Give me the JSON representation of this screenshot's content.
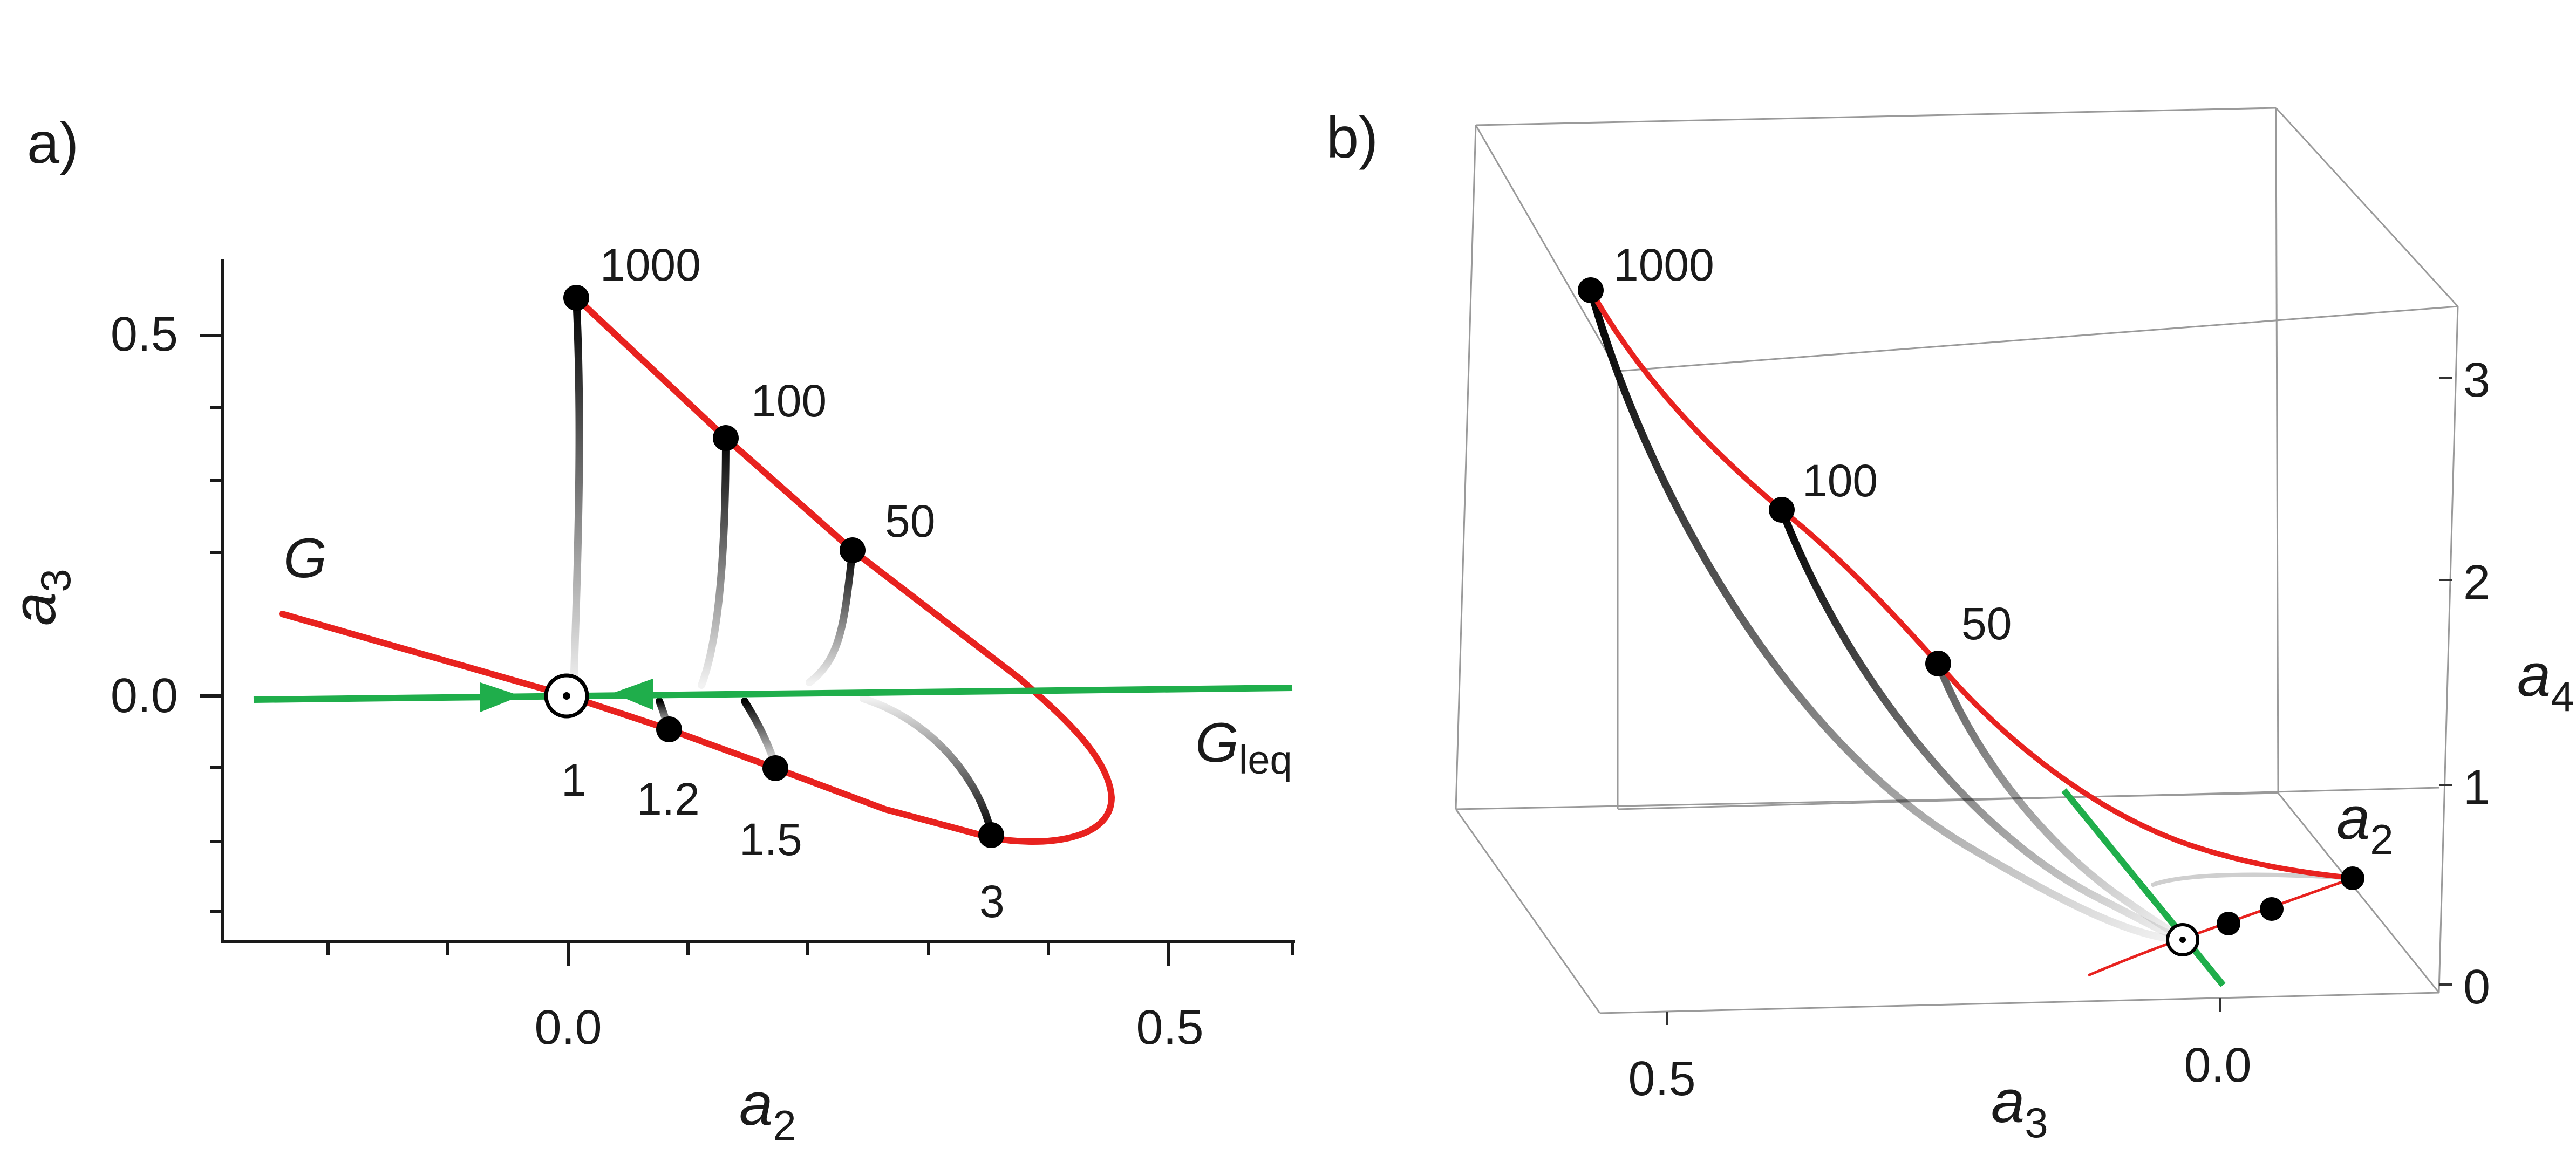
{
  "panel_a": {
    "label": "a)",
    "x_axis": {
      "title": "a",
      "sub": "2",
      "ticks": [
        "0.0",
        "0.5"
      ]
    },
    "y_axis": {
      "title": "a",
      "sub": "3",
      "ticks": [
        "0.5",
        "0.0"
      ]
    },
    "curve_G": {
      "name": "G",
      "color": "#e8221f"
    },
    "curve_Gleq": {
      "name": "G",
      "sub": "leq",
      "color": "#1fae4b"
    },
    "point_labels": [
      "1000",
      "100",
      "50",
      "1",
      "1.2",
      "1.5",
      "3"
    ]
  },
  "panel_b": {
    "label": "b)",
    "axis_a3": {
      "title": "a",
      "sub": "3",
      "ticks": [
        "0.5",
        "0.0"
      ]
    },
    "axis_a4": {
      "title": "a",
      "sub": "4",
      "ticks": [
        "3",
        "2",
        "1",
        "0"
      ]
    },
    "axis_a2": {
      "title": "a",
      "sub": "2"
    },
    "point_labels": [
      "1000",
      "100",
      "50"
    ]
  }
}
